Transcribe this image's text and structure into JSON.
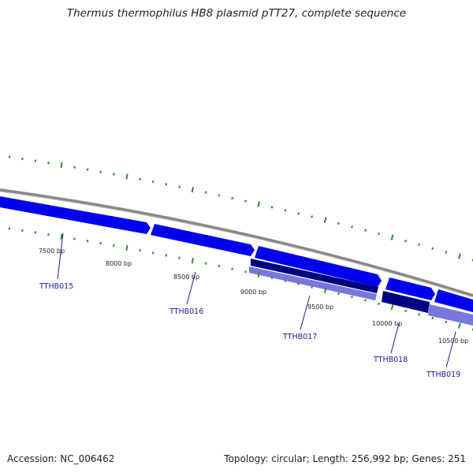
{
  "map": {
    "title": "Thermus thermophilus HB8 plasmid pTT27, complete sequence"
  },
  "scale_labels": [
    "7500 bp",
    "8000 bp",
    "8500 bp",
    "9000 bp",
    "9500 bp",
    "10000 bp",
    "10500 bp"
  ],
  "genes": [
    {
      "id": "TTHB015",
      "track": "forward",
      "color": "#0000ee"
    },
    {
      "id": "TTHB016",
      "track": "forward",
      "color": "#0000ee"
    },
    {
      "id": "TTHB017",
      "track": "forward",
      "color": "#0000ee"
    },
    {
      "id": "TTHB018",
      "track": "forward",
      "color": "#0000ee"
    },
    {
      "id": "TTHB019",
      "track": "forward",
      "color": "#0000ee"
    }
  ],
  "colors": {
    "backbone": "#888888",
    "forward_cds": "#0000ee",
    "dark_feature": "#000080",
    "light_feature": "#7777dd",
    "tick": "#2e8b2e",
    "gene_label": "#1a1aa6"
  },
  "footer": {
    "accession": "Accession: NC_006462",
    "summary": "Topology: circular; Length: 256,992 bp; Genes: 251"
  }
}
